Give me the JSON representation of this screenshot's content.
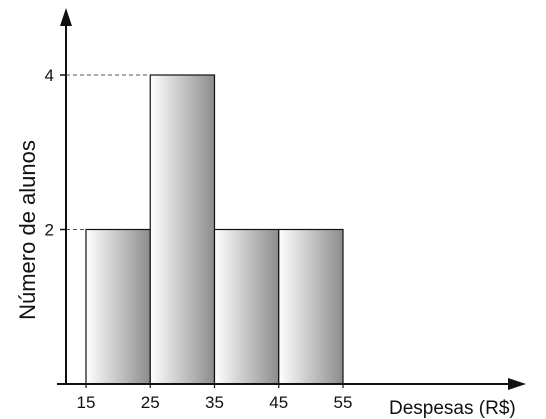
{
  "chart_data": {
    "type": "bar",
    "subtype": "histogram",
    "bin_edges": [
      15,
      25,
      35,
      45,
      55
    ],
    "values": [
      2,
      4,
      2,
      2
    ],
    "x_tick_labels": [
      "15",
      "25",
      "35",
      "45",
      "55"
    ],
    "y_tick_labels": [
      "2",
      "4"
    ],
    "y_ticks": [
      2,
      4
    ],
    "xlabel": "Despesas (R$)",
    "ylabel": "Número de alunos",
    "title": "",
    "xlim": [
      15,
      55
    ],
    "ylim": [
      0,
      4.8
    ],
    "grid": false,
    "guide_lines": "dashed lines from y-axis to bar tops",
    "bar_fill": "horizontal gradient white to gray",
    "colors": {
      "bar_light": "#ffffff",
      "bar_dark": "#8c8c8c",
      "bar_stroke": "#111111",
      "axis": "#111111",
      "guide": "#555555"
    }
  }
}
